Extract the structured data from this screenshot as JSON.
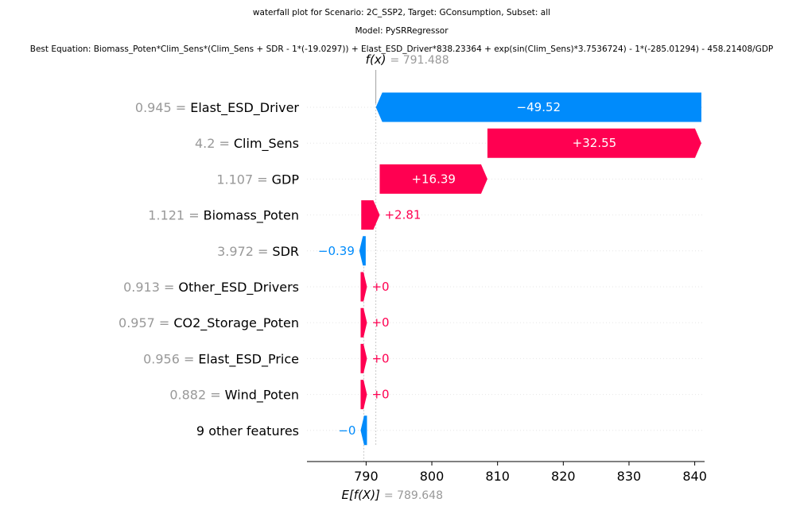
{
  "chart_data": {
    "type": "waterfall",
    "title": "waterfall plot for Scenario: 2C_SSP2, Target: GConsumption, Subset: all",
    "subtitle": "Model: PySRRegressor",
    "equation": "Best Equation: Biomass_Poten*Clim_Sens*(Clim_Sens + SDR - 1*(-19.0297)) + Elast_ESD_Driver*838.23364 + exp(sin(Clim_Sens)*3.7536724) - 1*(-285.01294) - 458.21408/GDP",
    "fx_label": "f(x)",
    "fx_value": "= 791.488",
    "fx": 791.488,
    "ex_label": "E[f(X)]",
    "ex_value": "= 789.648",
    "ex": 789.648,
    "xlim": [
      781,
      841.5
    ],
    "xticks": [
      790,
      800,
      810,
      820,
      830,
      840
    ],
    "positive_color": "#ff0051",
    "negative_color": "#008bfb",
    "features": [
      {
        "value": "0.945 =",
        "name": "Elast_ESD_Driver",
        "contribution": -49.52,
        "label": "−49.52"
      },
      {
        "value": "4.2 =",
        "name": "Clim_Sens",
        "contribution": 32.55,
        "label": "+32.55"
      },
      {
        "value": "1.107 =",
        "name": "GDP",
        "contribution": 16.39,
        "label": "+16.39"
      },
      {
        "value": "1.121 =",
        "name": "Biomass_Poten",
        "contribution": 2.81,
        "label": "+2.81"
      },
      {
        "value": "3.972 =",
        "name": "SDR",
        "contribution": -0.39,
        "label": "−0.39"
      },
      {
        "value": "0.913 =",
        "name": "Other_ESD_Drivers",
        "contribution": 0,
        "label": "+0"
      },
      {
        "value": "0.957 =",
        "name": "CO2_Storage_Poten",
        "contribution": 0,
        "label": "+0"
      },
      {
        "value": "0.956 =",
        "name": "Elast_ESD_Price",
        "contribution": 0,
        "label": "+0"
      },
      {
        "value": "0.882 =",
        "name": "Wind_Poten",
        "contribution": 0,
        "label": "+0"
      },
      {
        "value": "",
        "name": "9 other features",
        "contribution": -0.001,
        "label": "−0"
      }
    ]
  }
}
